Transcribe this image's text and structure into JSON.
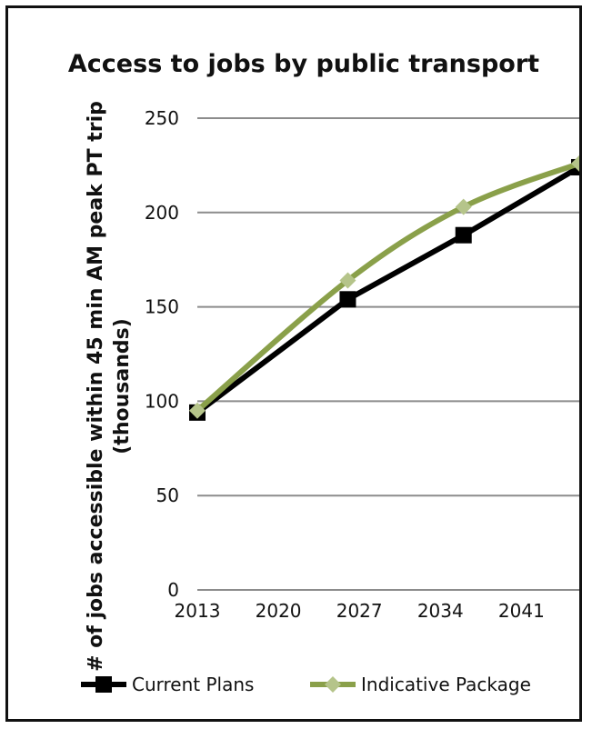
{
  "chart_data": {
    "type": "line",
    "title": "Access to jobs by public transport",
    "ylabel": "# of jobs accessible within 45 min AM peak PT trip",
    "ylabel_line2": "(thousands)",
    "xlabel": "",
    "x_ticks": [
      "2013",
      "2020",
      "2027",
      "2034",
      "2041"
    ],
    "ylim": [
      0,
      250
    ],
    "y_ticks": [
      "0",
      "50",
      "100",
      "150",
      "200",
      "250"
    ],
    "grid": true,
    "legend_position": "bottom",
    "series": [
      {
        "name": "Current Plans",
        "color": "#000000",
        "marker": "square",
        "x": [
          2013,
          2026,
          2036,
          2046
        ],
        "y": [
          94,
          154,
          188,
          224
        ]
      },
      {
        "name": "Indicative Package",
        "color": "#8aa04a",
        "marker": "diamond",
        "x": [
          2013,
          2026,
          2036,
          2046
        ],
        "y": [
          95,
          164,
          203,
          226
        ]
      }
    ]
  }
}
